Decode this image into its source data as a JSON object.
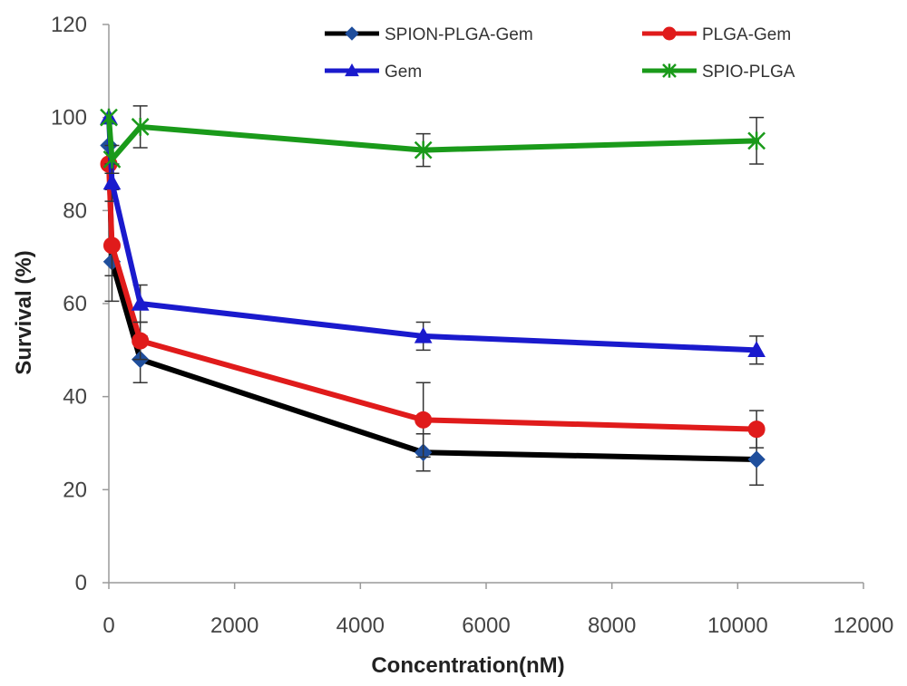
{
  "chart_data": {
    "type": "line",
    "title": "",
    "xlabel": "Concentration(nM)",
    "ylabel": "Survival (%)",
    "xlim": [
      0,
      12000
    ],
    "ylim": [
      0,
      120
    ],
    "xticks": [
      0,
      2000,
      4000,
      6000,
      8000,
      10000,
      12000
    ],
    "yticks": [
      0,
      20,
      40,
      60,
      80,
      100,
      120
    ],
    "grid": false,
    "legend_position": "top",
    "series": [
      {
        "name": "SPION-PLGA-Gem",
        "color": "#000000",
        "marker": "diamond",
        "marker_color": "#1f4e9c",
        "x": [
          0,
          50,
          500,
          5000,
          10300
        ],
        "y": [
          94,
          69,
          48,
          28,
          26.5
        ],
        "error": [
          0,
          3,
          5,
          4,
          5.5
        ]
      },
      {
        "name": "PLGA-Gem",
        "color": "#e01b1b",
        "marker": "circle",
        "marker_color": "#e01b1b",
        "x": [
          0,
          50,
          500,
          5000,
          10300
        ],
        "y": [
          90,
          72.5,
          52,
          35,
          33
        ],
        "error": [
          0,
          12,
          4,
          8,
          4
        ]
      },
      {
        "name": "Gem",
        "color": "#1a1acd",
        "marker": "triangle",
        "marker_color": "#1a1acd",
        "x": [
          0,
          50,
          500,
          5000,
          10300
        ],
        "y": [
          100,
          86,
          60,
          53,
          50
        ],
        "error": [
          0,
          4,
          4,
          3,
          3
        ]
      },
      {
        "name": "SPIO-PLGA",
        "color": "#1a9a1a",
        "marker": "asterisk",
        "marker_color": "#1a9a1a",
        "x": [
          0,
          50,
          500,
          5000,
          10300
        ],
        "y": [
          100,
          91,
          98,
          93,
          95
        ],
        "error": [
          0,
          3,
          4.5,
          3.5,
          5
        ]
      }
    ]
  }
}
